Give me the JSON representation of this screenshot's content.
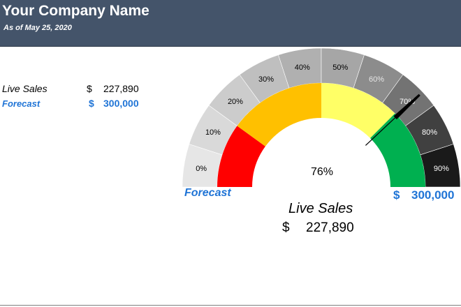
{
  "header": {
    "company_name": "Your Company Name",
    "as_of": "As of May 25, 2020",
    "background": "#44546a"
  },
  "summary": {
    "live_label": "Live Sales",
    "live_currency": "$",
    "live_value": "227,890",
    "forecast_label": "Forecast",
    "forecast_currency": "$",
    "forecast_value": "300,000"
  },
  "gauge": {
    "center_label": "76%",
    "left_label": "Forecast",
    "right_currency": "$",
    "right_value": "300,000",
    "live_label": "Live Sales",
    "live_currency": "$",
    "live_value": "227,890",
    "accent_color": "#1f74d6"
  },
  "chart_data": {
    "type": "gauge",
    "value_percent": 76,
    "live_sales": 227890,
    "forecast": 300000,
    "scale_range": [
      0,
      100
    ],
    "scale_labels": [
      "0%",
      "10%",
      "20%",
      "30%",
      "40%",
      "50%",
      "60%",
      "70%",
      "80%",
      "90%"
    ],
    "scale_colors": [
      "#e6e6e6",
      "#d9d9d9",
      "#cccccc",
      "#bfbfbf",
      "#b0b0b0",
      "#a6a6a6",
      "#8c8c8c",
      "#737373",
      "#404040",
      "#1a1a1a"
    ],
    "scale_label_colors": [
      "#000000",
      "#000000",
      "#000000",
      "#000000",
      "#000000",
      "#000000",
      "#e6e6e6",
      "#ffffff",
      "#ffffff",
      "#ffffff"
    ],
    "bands": [
      {
        "from": 0,
        "to": 20,
        "color": "#ff0000"
      },
      {
        "from": 20,
        "to": 50,
        "color": "#ffc000"
      },
      {
        "from": 50,
        "to": 75,
        "color": "#ffff66"
      },
      {
        "from": 75,
        "to": 100,
        "color": "#00b050"
      }
    ]
  }
}
